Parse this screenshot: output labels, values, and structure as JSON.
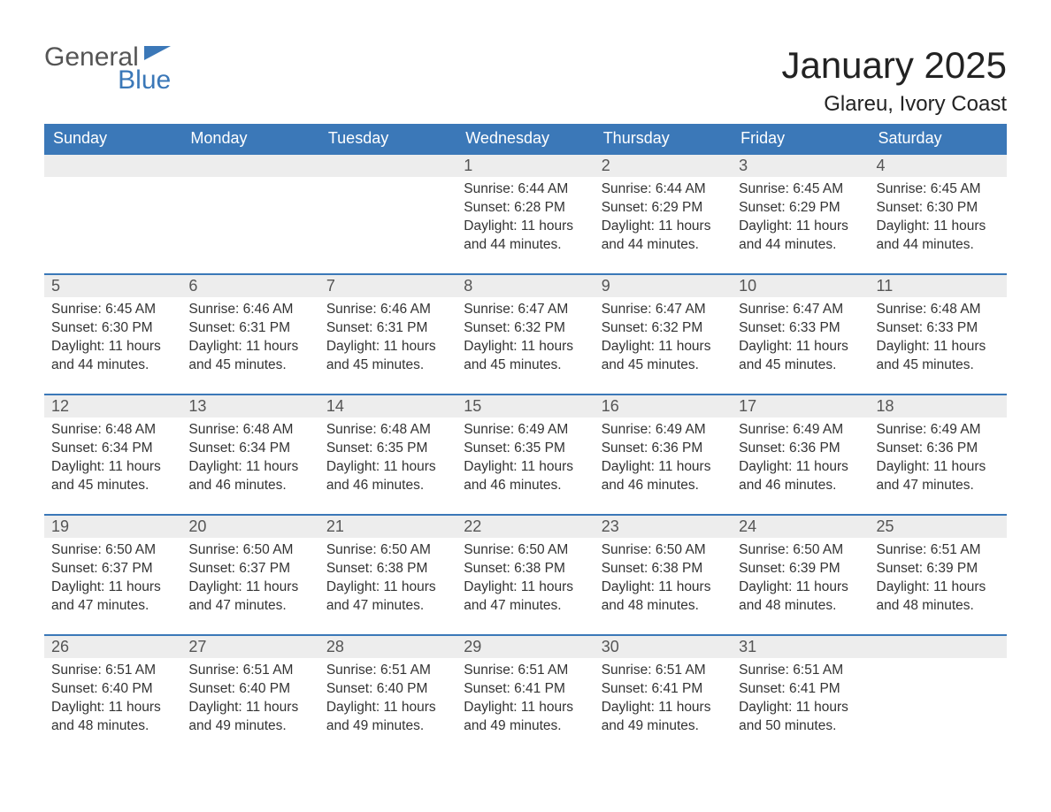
{
  "brand": {
    "general": "General",
    "blue": "Blue"
  },
  "title": "January 2025",
  "location": "Glareu, Ivory Coast",
  "colors": {
    "header_bg": "#3b78b8",
    "header_text": "#ffffff",
    "daynum_bg": "#ededed",
    "row_border": "#3b78b8",
    "body_text": "#333333",
    "page_bg": "#ffffff"
  },
  "weekdays": [
    "Sunday",
    "Monday",
    "Tuesday",
    "Wednesday",
    "Thursday",
    "Friday",
    "Saturday"
  ],
  "labels": {
    "sunrise": "Sunrise: ",
    "sunset": "Sunset: ",
    "daylight": "Daylight: "
  },
  "weeks": [
    [
      null,
      null,
      null,
      {
        "d": "1",
        "sr": "6:44 AM",
        "ss": "6:28 PM",
        "dl": "11 hours and 44 minutes."
      },
      {
        "d": "2",
        "sr": "6:44 AM",
        "ss": "6:29 PM",
        "dl": "11 hours and 44 minutes."
      },
      {
        "d": "3",
        "sr": "6:45 AM",
        "ss": "6:29 PM",
        "dl": "11 hours and 44 minutes."
      },
      {
        "d": "4",
        "sr": "6:45 AM",
        "ss": "6:30 PM",
        "dl": "11 hours and 44 minutes."
      }
    ],
    [
      {
        "d": "5",
        "sr": "6:45 AM",
        "ss": "6:30 PM",
        "dl": "11 hours and 44 minutes."
      },
      {
        "d": "6",
        "sr": "6:46 AM",
        "ss": "6:31 PM",
        "dl": "11 hours and 45 minutes."
      },
      {
        "d": "7",
        "sr": "6:46 AM",
        "ss": "6:31 PM",
        "dl": "11 hours and 45 minutes."
      },
      {
        "d": "8",
        "sr": "6:47 AM",
        "ss": "6:32 PM",
        "dl": "11 hours and 45 minutes."
      },
      {
        "d": "9",
        "sr": "6:47 AM",
        "ss": "6:32 PM",
        "dl": "11 hours and 45 minutes."
      },
      {
        "d": "10",
        "sr": "6:47 AM",
        "ss": "6:33 PM",
        "dl": "11 hours and 45 minutes."
      },
      {
        "d": "11",
        "sr": "6:48 AM",
        "ss": "6:33 PM",
        "dl": "11 hours and 45 minutes."
      }
    ],
    [
      {
        "d": "12",
        "sr": "6:48 AM",
        "ss": "6:34 PM",
        "dl": "11 hours and 45 minutes."
      },
      {
        "d": "13",
        "sr": "6:48 AM",
        "ss": "6:34 PM",
        "dl": "11 hours and 46 minutes."
      },
      {
        "d": "14",
        "sr": "6:48 AM",
        "ss": "6:35 PM",
        "dl": "11 hours and 46 minutes."
      },
      {
        "d": "15",
        "sr": "6:49 AM",
        "ss": "6:35 PM",
        "dl": "11 hours and 46 minutes."
      },
      {
        "d": "16",
        "sr": "6:49 AM",
        "ss": "6:36 PM",
        "dl": "11 hours and 46 minutes."
      },
      {
        "d": "17",
        "sr": "6:49 AM",
        "ss": "6:36 PM",
        "dl": "11 hours and 46 minutes."
      },
      {
        "d": "18",
        "sr": "6:49 AM",
        "ss": "6:36 PM",
        "dl": "11 hours and 47 minutes."
      }
    ],
    [
      {
        "d": "19",
        "sr": "6:50 AM",
        "ss": "6:37 PM",
        "dl": "11 hours and 47 minutes."
      },
      {
        "d": "20",
        "sr": "6:50 AM",
        "ss": "6:37 PM",
        "dl": "11 hours and 47 minutes."
      },
      {
        "d": "21",
        "sr": "6:50 AM",
        "ss": "6:38 PM",
        "dl": "11 hours and 47 minutes."
      },
      {
        "d": "22",
        "sr": "6:50 AM",
        "ss": "6:38 PM",
        "dl": "11 hours and 47 minutes."
      },
      {
        "d": "23",
        "sr": "6:50 AM",
        "ss": "6:38 PM",
        "dl": "11 hours and 48 minutes."
      },
      {
        "d": "24",
        "sr": "6:50 AM",
        "ss": "6:39 PM",
        "dl": "11 hours and 48 minutes."
      },
      {
        "d": "25",
        "sr": "6:51 AM",
        "ss": "6:39 PM",
        "dl": "11 hours and 48 minutes."
      }
    ],
    [
      {
        "d": "26",
        "sr": "6:51 AM",
        "ss": "6:40 PM",
        "dl": "11 hours and 48 minutes."
      },
      {
        "d": "27",
        "sr": "6:51 AM",
        "ss": "6:40 PM",
        "dl": "11 hours and 49 minutes."
      },
      {
        "d": "28",
        "sr": "6:51 AM",
        "ss": "6:40 PM",
        "dl": "11 hours and 49 minutes."
      },
      {
        "d": "29",
        "sr": "6:51 AM",
        "ss": "6:41 PM",
        "dl": "11 hours and 49 minutes."
      },
      {
        "d": "30",
        "sr": "6:51 AM",
        "ss": "6:41 PM",
        "dl": "11 hours and 49 minutes."
      },
      {
        "d": "31",
        "sr": "6:51 AM",
        "ss": "6:41 PM",
        "dl": "11 hours and 50 minutes."
      },
      null
    ]
  ]
}
